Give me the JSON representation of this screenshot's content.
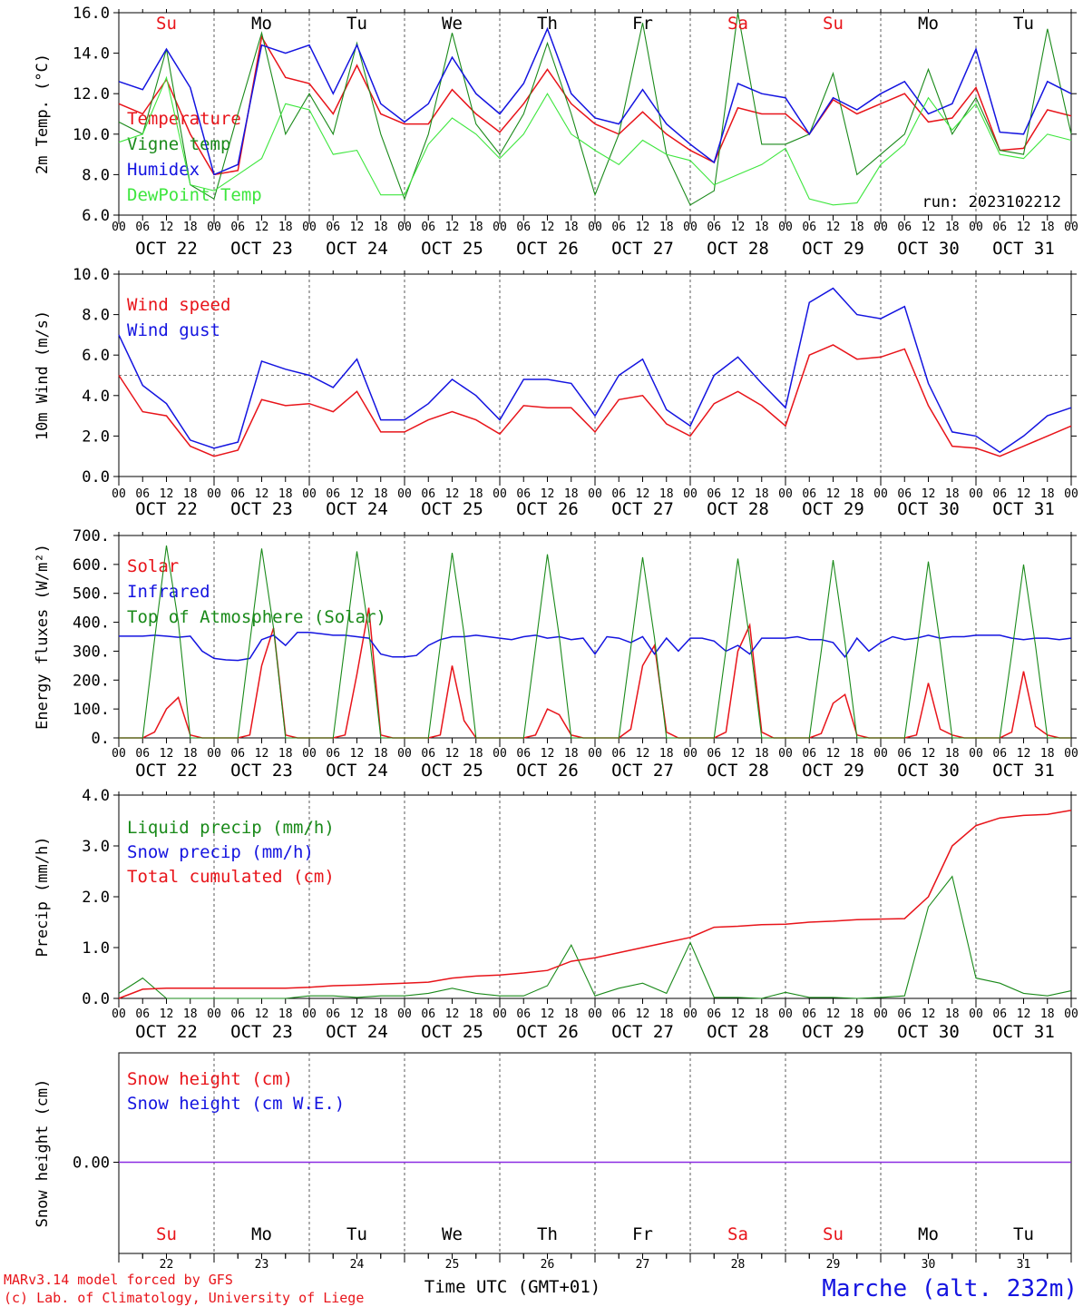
{
  "day_ticks": [
    "00",
    "06",
    "12",
    "18"
  ],
  "final_tick": "00",
  "date_labels": [
    "OCT 22",
    "OCT 23",
    "OCT 24",
    "OCT 25",
    "OCT 26",
    "OCT 27",
    "OCT 28",
    "OCT 29",
    "OCT 30",
    "OCT 31"
  ],
  "weekdays": [
    {
      "label": "Su",
      "color": "#e8141a"
    },
    {
      "label": "Mo",
      "color": "#000000"
    },
    {
      "label": "Tu",
      "color": "#000000"
    },
    {
      "label": "We",
      "color": "#000000"
    },
    {
      "label": "Th",
      "color": "#000000"
    },
    {
      "label": "Fr",
      "color": "#000000"
    },
    {
      "label": "Sa",
      "color": "#e8141a"
    },
    {
      "label": "Su",
      "color": "#e8141a"
    },
    {
      "label": "Mo",
      "color": "#000000"
    },
    {
      "label": "Tu",
      "color": "#000000"
    }
  ],
  "day_numbers": [
    "22",
    "23",
    "24",
    "25",
    "26",
    "27",
    "28",
    "29",
    "30",
    "31"
  ],
  "footer": {
    "model": "MARv3.14 model forced by GFS",
    "credit": "(c) Lab. of Climatology, University of Liege",
    "xlabel": "Time UTC (GMT+01)",
    "station": "Marche (alt. 232m)"
  },
  "colors": {
    "red": "#e8141a",
    "green": "#1a8a1a",
    "blue": "#1414e0",
    "lightgreen": "#3ee63e",
    "purple": "#8a2be2"
  },
  "chart_data": [
    {
      "id": "temp",
      "type": "line",
      "ylabel": "2m Temp. (°C)",
      "ylim": [
        6,
        16
      ],
      "yticks": [
        "6.0",
        "8.0",
        "10.0",
        "12.0",
        "14.0",
        "16.0"
      ],
      "annotation": "run: 2023102212",
      "x_hours_step": 12,
      "series": [
        {
          "name": "Temperature",
          "color": "red",
          "values": [
            11.5,
            11.0,
            12.7,
            10.0,
            8.0,
            8.2,
            14.8,
            12.8,
            12.5,
            11.0,
            13.4,
            11.0,
            10.5,
            10.5,
            12.2,
            11.0,
            10.1,
            11.5,
            13.2,
            11.5,
            10.5,
            10.0,
            11.1,
            10.0,
            9.2,
            8.6,
            11.3,
            11.0,
            11.0,
            10.0,
            11.7,
            11.0,
            11.5,
            12.0,
            10.6,
            10.8,
            12.3,
            9.2,
            9.3,
            11.2,
            10.9
          ]
        },
        {
          "name": "Vigne temp",
          "color": "green",
          "values": [
            10.6,
            10.0,
            14.2,
            7.5,
            6.8,
            11.0,
            15.0,
            10.0,
            12.0,
            10.0,
            14.5,
            10.0,
            6.8,
            10.0,
            15.0,
            10.5,
            9.0,
            11.0,
            14.5,
            11.0,
            7.0,
            10.0,
            15.5,
            9.0,
            6.5,
            7.2,
            16.0,
            9.5,
            9.5,
            10.0,
            13.0,
            8.0,
            9.0,
            10.0,
            13.2,
            10.0,
            11.8,
            9.2,
            9.0,
            15.2,
            10.0
          ]
        },
        {
          "name": "Humidex",
          "color": "blue",
          "values": [
            12.6,
            12.2,
            14.2,
            12.3,
            8.0,
            8.5,
            14.4,
            14.0,
            14.4,
            12.0,
            14.4,
            11.5,
            10.6,
            11.5,
            13.8,
            12.0,
            11.0,
            12.5,
            15.2,
            12.0,
            10.8,
            10.5,
            12.2,
            10.5,
            9.5,
            8.6,
            12.5,
            12.0,
            11.8,
            10.0,
            11.8,
            11.2,
            12.0,
            12.6,
            11.0,
            11.5,
            14.2,
            10.1,
            10.0,
            12.6,
            12.0
          ]
        },
        {
          "name": "DewPoint Temp",
          "color": "lightgreen",
          "values": [
            9.6,
            10.0,
            12.8,
            7.5,
            7.2,
            8.0,
            8.8,
            11.5,
            11.2,
            9.0,
            9.2,
            7.0,
            7.0,
            9.5,
            10.8,
            10.0,
            8.8,
            10.0,
            12.0,
            10.0,
            9.2,
            8.5,
            9.7,
            9.0,
            8.7,
            7.5,
            8.0,
            8.5,
            9.3,
            6.8,
            6.5,
            6.6,
            8.5,
            9.5,
            11.8,
            10.2,
            11.5,
            9.0,
            8.8,
            10.0,
            9.7
          ]
        }
      ]
    },
    {
      "id": "wind",
      "type": "line",
      "ylabel": "10m Wind (m/s)",
      "ylim": [
        0,
        10
      ],
      "yticks": [
        "0.0",
        "2.0",
        "4.0",
        "6.0",
        "8.0",
        "10.0"
      ],
      "ref_line": 5,
      "x_hours_step": 12,
      "series": [
        {
          "name": "Wind speed",
          "color": "red",
          "values": [
            5.0,
            3.2,
            3.0,
            1.5,
            1.0,
            1.3,
            3.8,
            3.5,
            3.6,
            3.2,
            4.2,
            2.2,
            2.2,
            2.8,
            3.2,
            2.8,
            2.1,
            3.5,
            3.4,
            3.4,
            2.2,
            3.8,
            4.0,
            2.6,
            2.0,
            3.6,
            4.2,
            3.5,
            2.5,
            6.0,
            6.5,
            5.8,
            5.9,
            6.3,
            3.5,
            1.5,
            1.4,
            1.0,
            1.5,
            2.0,
            2.5
          ]
        },
        {
          "name": "Wind gust",
          "color": "blue",
          "values": [
            7.0,
            4.5,
            3.6,
            1.8,
            1.4,
            1.7,
            5.7,
            5.3,
            5.0,
            4.4,
            5.8,
            2.8,
            2.8,
            3.6,
            4.8,
            4.0,
            2.8,
            4.8,
            4.8,
            4.6,
            3.0,
            5.0,
            5.8,
            3.3,
            2.5,
            5.0,
            5.9,
            4.6,
            3.4,
            8.6,
            9.3,
            8.0,
            7.8,
            8.4,
            4.6,
            2.2,
            2.0,
            1.2,
            2.0,
            3.0,
            3.4
          ]
        }
      ]
    },
    {
      "id": "flux",
      "type": "line",
      "ylabel": "Energy fluxes (W/m²)",
      "ylim": [
        0,
        700
      ],
      "yticks": [
        "0.",
        "100.",
        "200.",
        "300.",
        "400.",
        "500.",
        "600.",
        "700."
      ],
      "x_hours_step": 3,
      "series": [
        {
          "name": "Solar",
          "color": "red",
          "values": [
            0,
            0,
            0,
            20,
            100,
            140,
            10,
            0,
            0,
            0,
            0,
            10,
            250,
            380,
            10,
            0,
            0,
            0,
            0,
            10,
            220,
            450,
            10,
            0,
            0,
            0,
            0,
            10,
            250,
            60,
            0,
            0,
            0,
            0,
            0,
            10,
            100,
            80,
            10,
            0,
            0,
            0,
            0,
            30,
            250,
            320,
            20,
            0,
            0,
            0,
            0,
            20,
            300,
            390,
            20,
            0,
            0,
            0,
            0,
            15,
            120,
            150,
            10,
            0,
            0,
            0,
            0,
            10,
            190,
            30,
            10,
            0,
            0,
            0,
            0,
            20,
            230,
            40,
            10,
            0,
            0
          ]
        },
        {
          "name": "Infrared",
          "color": "blue",
          "values": [
            352,
            352,
            352,
            355,
            352,
            348,
            352,
            300,
            275,
            270,
            268,
            275,
            340,
            355,
            320,
            365,
            365,
            360,
            355,
            355,
            350,
            345,
            290,
            280,
            280,
            285,
            320,
            340,
            350,
            350,
            355,
            350,
            345,
            340,
            350,
            355,
            345,
            350,
            340,
            345,
            290,
            350,
            345,
            330,
            350,
            290,
            345,
            300,
            345,
            345,
            335,
            300,
            320,
            290,
            345,
            345,
            345,
            350,
            340,
            340,
            330,
            280,
            345,
            300,
            330,
            350,
            340,
            345,
            355,
            345,
            350,
            350,
            355,
            355,
            355,
            345,
            340,
            345,
            345,
            340,
            345
          ]
        },
        {
          "name": "Top of Atmosphere (Solar)",
          "color": "green",
          "values": [
            0,
            0,
            0,
            340,
            665,
            400,
            0,
            0,
            0,
            0,
            0,
            330,
            655,
            380,
            0,
            0,
            0,
            0,
            0,
            325,
            645,
            370,
            0,
            0,
            0,
            0,
            0,
            320,
            640,
            360,
            0,
            0,
            0,
            0,
            0,
            315,
            635,
            350,
            0,
            0,
            0,
            0,
            0,
            310,
            625,
            345,
            0,
            0,
            0,
            0,
            0,
            305,
            620,
            340,
            0,
            0,
            0,
            0,
            0,
            300,
            615,
            330,
            0,
            0,
            0,
            0,
            0,
            295,
            610,
            325,
            0,
            0,
            0,
            0,
            0,
            290,
            600,
            320,
            0,
            0,
            0
          ]
        }
      ]
    },
    {
      "id": "precip",
      "type": "line",
      "ylabel": "Precip (mm/h)",
      "ylim": [
        0,
        4
      ],
      "yticks": [
        "0.0",
        "1.0",
        "2.0",
        "3.0",
        "4.0"
      ],
      "x_hours_step": 6,
      "series": [
        {
          "name": "Liquid precip (mm/h)",
          "color": "green",
          "values": [
            0.1,
            0.4,
            0.0,
            0.0,
            0.0,
            0.0,
            0.0,
            0.0,
            0.05,
            0.05,
            0.02,
            0.05,
            0.05,
            0.1,
            0.2,
            0.1,
            0.05,
            0.05,
            0.25,
            1.05,
            0.05,
            0.2,
            0.3,
            0.1,
            1.1,
            0.02,
            0.02,
            0.0,
            0.12,
            0.02,
            0.02,
            0.0,
            0.02,
            0.05,
            1.8,
            2.4,
            0.4,
            0.3,
            0.1,
            0.05,
            0.15
          ]
        },
        {
          "name": "Snow precip (mm/h)",
          "color": "blue",
          "values": []
        },
        {
          "name": "Total cumulated (cm)",
          "color": "red",
          "values": [
            0.0,
            0.18,
            0.2,
            0.2,
            0.2,
            0.2,
            0.2,
            0.2,
            0.22,
            0.25,
            0.26,
            0.28,
            0.3,
            0.32,
            0.4,
            0.44,
            0.46,
            0.5,
            0.55,
            0.73,
            0.8,
            0.9,
            1.0,
            1.1,
            1.2,
            1.4,
            1.42,
            1.45,
            1.46,
            1.5,
            1.52,
            1.55,
            1.56,
            1.57,
            2.0,
            3.0,
            3.4,
            3.55,
            3.6,
            3.62,
            3.7
          ]
        }
      ]
    },
    {
      "id": "snow",
      "type": "line",
      "ylabel": "Snow height (cm)",
      "ylim": [
        -1,
        1
      ],
      "yticks": [
        "0.00"
      ],
      "x_hours_step": 12,
      "series": [
        {
          "name": "Snow height (cm)",
          "color": "red",
          "values": [
            0,
            0
          ]
        },
        {
          "name": "Snow height (cm W.E.)",
          "color": "blue",
          "values": [
            0,
            0
          ]
        }
      ]
    }
  ]
}
